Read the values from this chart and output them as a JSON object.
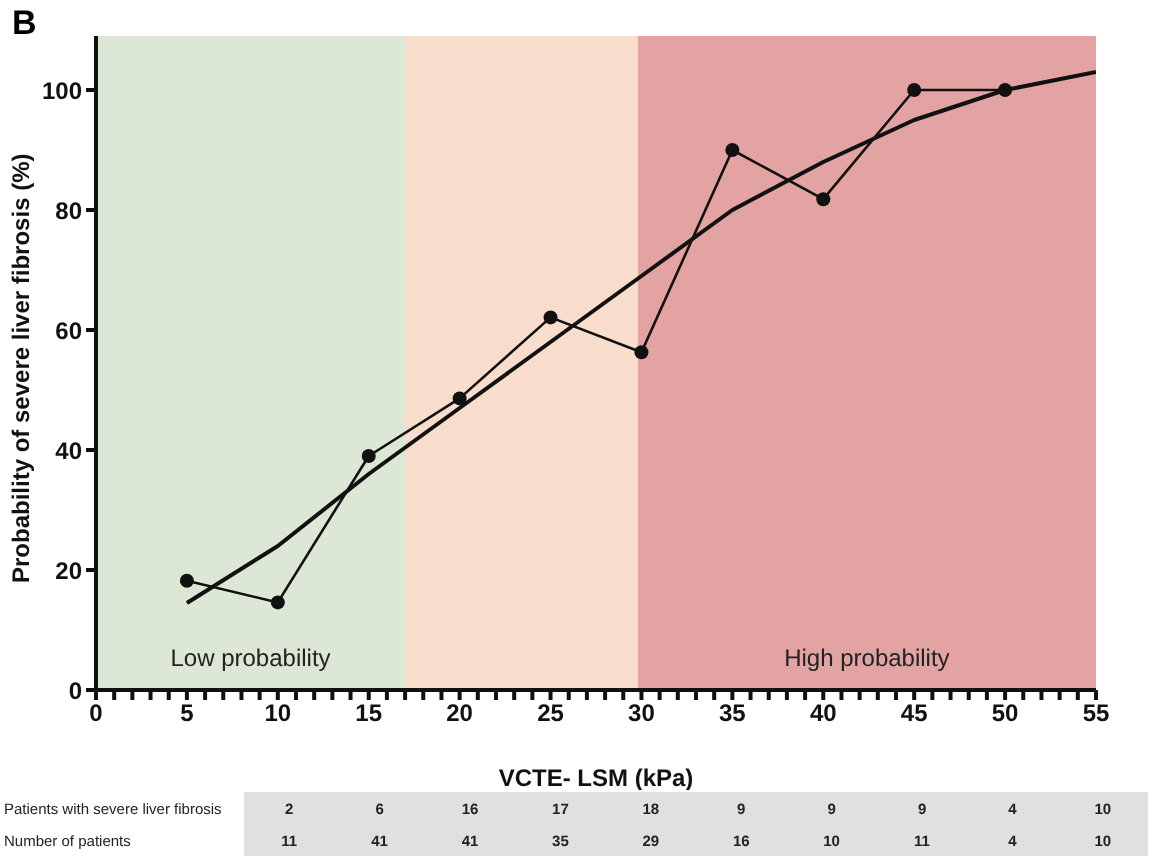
{
  "chart_data": {
    "type": "line",
    "title": "B",
    "xlabel": "VCTE- LSM (kPa)",
    "ylabel": "Probability of severe liver fibrosis (%)",
    "x": [
      5,
      10,
      15,
      20,
      25,
      30,
      35,
      40,
      45,
      50
    ],
    "series": [
      {
        "color": "#111111",
        "values": [
          18.2,
          14.6,
          39,
          48.6,
          62.1,
          56.3,
          90,
          81.8,
          100,
          100
        ],
        "marker": "circle"
      },
      {
        "type": "line",
        "color": "#111111",
        "x": [
          5,
          10,
          15,
          20,
          25,
          30,
          35,
          40,
          45,
          50,
          55
        ],
        "values": [
          14.5,
          24,
          36,
          47,
          58,
          69,
          80,
          88,
          95,
          100,
          103
        ],
        "marker": "none"
      }
    ],
    "xlim": [
      0,
      55
    ],
    "xticks": [
      0,
      {
        "value": 1,
        "label": null
      },
      {
        "value": 2,
        "label": null
      },
      {
        "value": 3,
        "label": null
      },
      {
        "value": 4,
        "label": null
      },
      5,
      {
        "value": 6,
        "label": null
      },
      {
        "value": 7,
        "label": null
      },
      {
        "value": 8,
        "label": null
      },
      {
        "value": 9,
        "label": null
      },
      10,
      {
        "value": 11,
        "label": null
      },
      {
        "value": 12,
        "label": null
      },
      {
        "value": 13,
        "label": null
      },
      {
        "value": 14,
        "label": null
      },
      15,
      {
        "value": 16,
        "label": null
      },
      {
        "value": 17,
        "label": null
      },
      {
        "value": 18,
        "label": null
      },
      {
        "value": 19,
        "label": null
      },
      20,
      {
        "value": 21,
        "label": null
      },
      {
        "value": 22,
        "label": null
      },
      {
        "value": 23,
        "label": null
      },
      {
        "value": 24,
        "label": null
      },
      25,
      {
        "value": 26,
        "label": null
      },
      {
        "value": 27,
        "label": null
      },
      {
        "value": 28,
        "label": null
      },
      {
        "value": 29,
        "label": null
      },
      30,
      {
        "value": 31,
        "label": null
      },
      {
        "value": 32,
        "label": null
      },
      {
        "value": 33,
        "label": null
      },
      {
        "value": 34,
        "label": null
      },
      35,
      {
        "value": 36,
        "label": null
      },
      {
        "value": 37,
        "label": null
      },
      {
        "value": 38,
        "label": null
      },
      {
        "value": 39,
        "label": null
      },
      40,
      {
        "value": 41,
        "label": null
      },
      {
        "value": 42,
        "label": null
      },
      {
        "value": 43,
        "label": null
      },
      {
        "value": 44,
        "label": null
      },
      45,
      {
        "value": 46,
        "label": null
      },
      {
        "value": 47,
        "label": null
      },
      {
        "value": 48,
        "label": null
      },
      {
        "value": 49,
        "label": null
      },
      50,
      {
        "value": 51,
        "label": null
      },
      {
        "value": 52,
        "label": null
      },
      {
        "value": 53,
        "label": null
      },
      {
        "value": 54,
        "label": null
      },
      55
    ],
    "ylim": [
      0,
      109
    ],
    "yticks": [
      0,
      20,
      40,
      60,
      80,
      100
    ],
    "bands": [
      {
        "axis": "x",
        "from": 0,
        "to": 17,
        "label": "Low probability",
        "color": "#dce8d5"
      },
      {
        "axis": "x",
        "from": 17,
        "to": 29.8,
        "label": null,
        "color": "#f8ddcc"
      },
      {
        "axis": "x",
        "from": 29.8,
        "to": 55,
        "label": "High probability",
        "color": "#e3a3a3"
      }
    ],
    "grid": false,
    "annotations": [
      "Patients with severe liver fibrosis",
      "2",
      "6",
      "16",
      "17",
      "18",
      "9",
      "9",
      "9",
      "4",
      "10",
      "Number of patients",
      "11",
      "41",
      "41",
      "35",
      "29",
      "16",
      "10",
      "11",
      "4",
      "10"
    ]
  }
}
